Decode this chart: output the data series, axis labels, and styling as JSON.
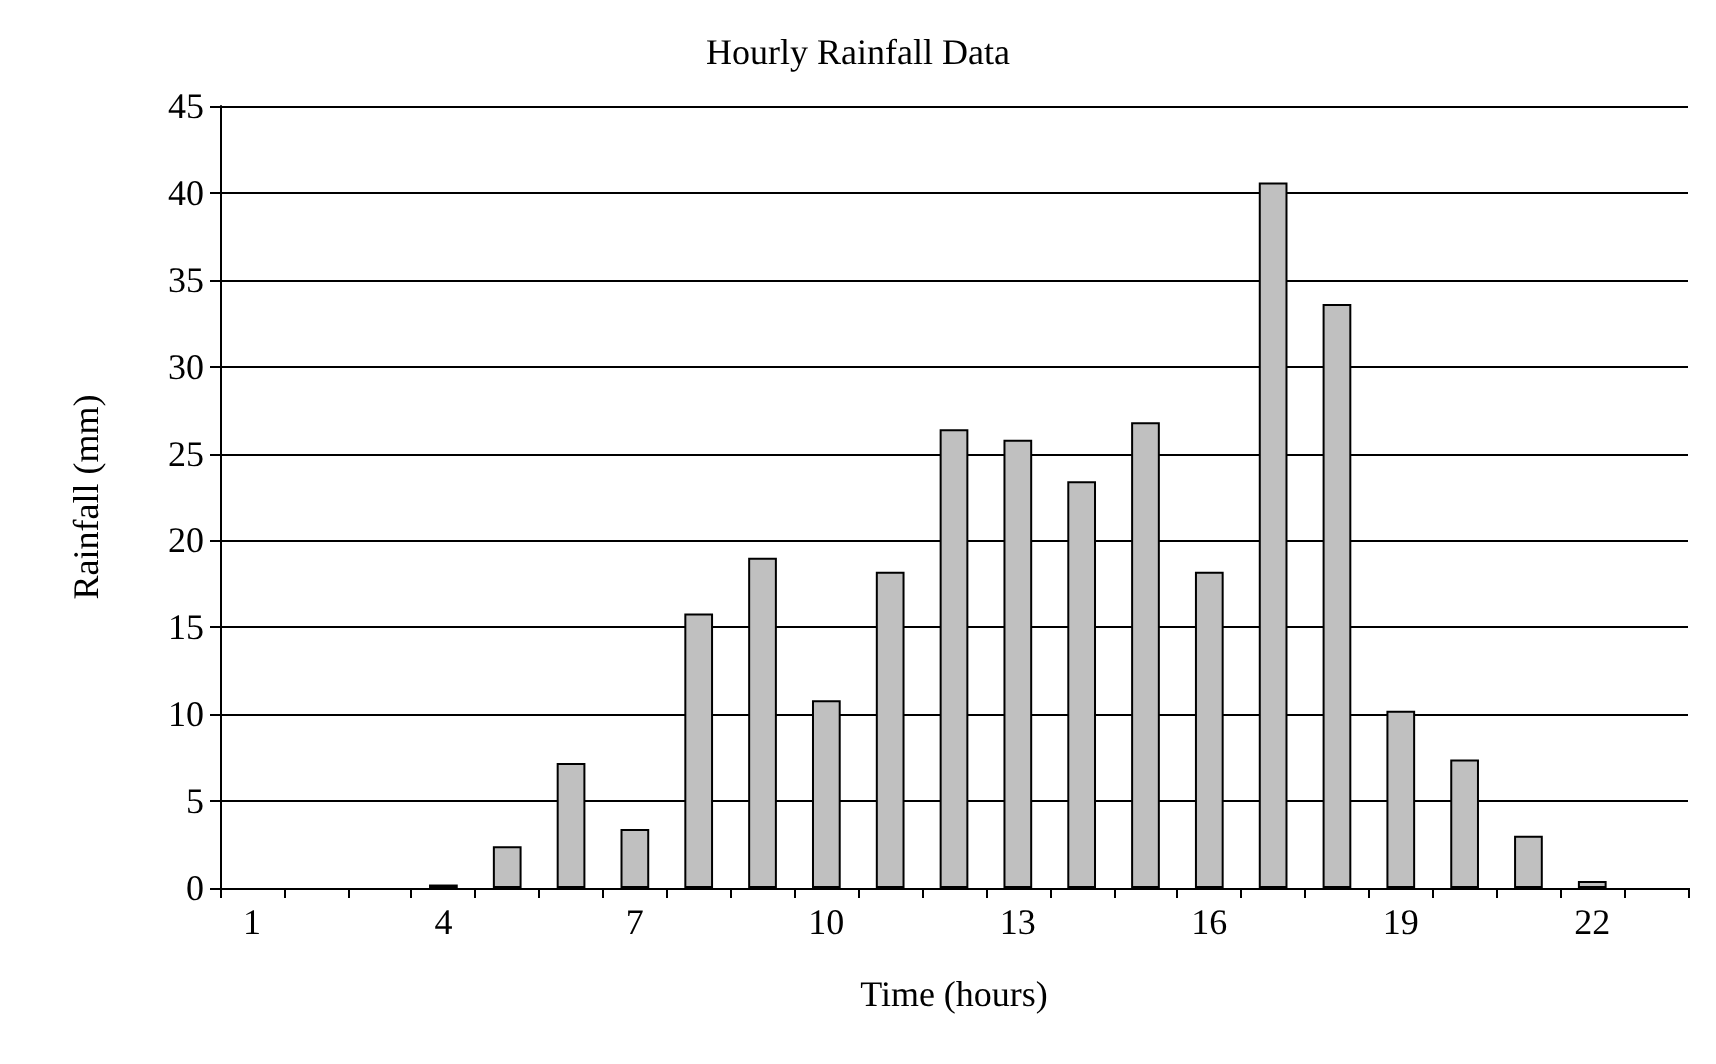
{
  "chart_data": {
    "type": "bar",
    "title": "Hourly Rainfall Data",
    "xlabel": "Time (hours)",
    "ylabel": "Rainfall (mm)",
    "categories": [
      "1",
      null,
      null,
      "4",
      null,
      null,
      "7",
      null,
      null,
      "10",
      null,
      null,
      "13",
      null,
      null,
      "16",
      null,
      null,
      "19",
      null,
      null,
      "22",
      null
    ],
    "values": [
      0,
      0,
      0,
      0.2,
      2.4,
      7.2,
      3.4,
      15.8,
      19,
      10.8,
      18.2,
      26.4,
      25.8,
      23.4,
      26.8,
      18.2,
      40.6,
      33.6,
      10.2,
      7.4,
      3.0,
      0.4,
      0
    ],
    "color": "#c0c0c0",
    "ylim": [
      0,
      45
    ],
    "yticks": [
      0,
      5,
      10,
      15,
      20,
      25,
      30,
      35,
      40,
      45
    ],
    "grid": "y"
  }
}
